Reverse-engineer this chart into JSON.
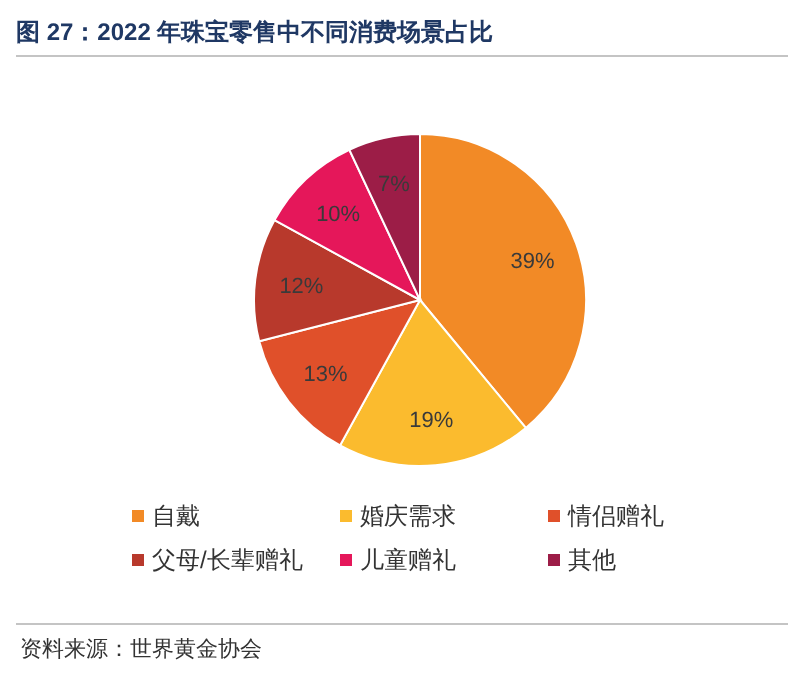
{
  "chart_data": {
    "type": "pie",
    "title": "图 27：2022 年珠宝零售中不同消费场景占比",
    "categories": [
      "自戴",
      "婚庆需求",
      "情侣赠礼",
      "父母/长辈赠礼",
      "儿童赠礼",
      "其他"
    ],
    "values": [
      39,
      19,
      13,
      12,
      10,
      7
    ],
    "colors": [
      "#f28a26",
      "#fbbb2e",
      "#e0502a",
      "#b8392c",
      "#e5175a",
      "#9c1d47"
    ],
    "value_labels": [
      "39%",
      "19%",
      "13%",
      "12%",
      "10%",
      "7%"
    ],
    "legend": "bottom",
    "annotations": [
      "资料来源：世界黄金协会"
    ]
  }
}
